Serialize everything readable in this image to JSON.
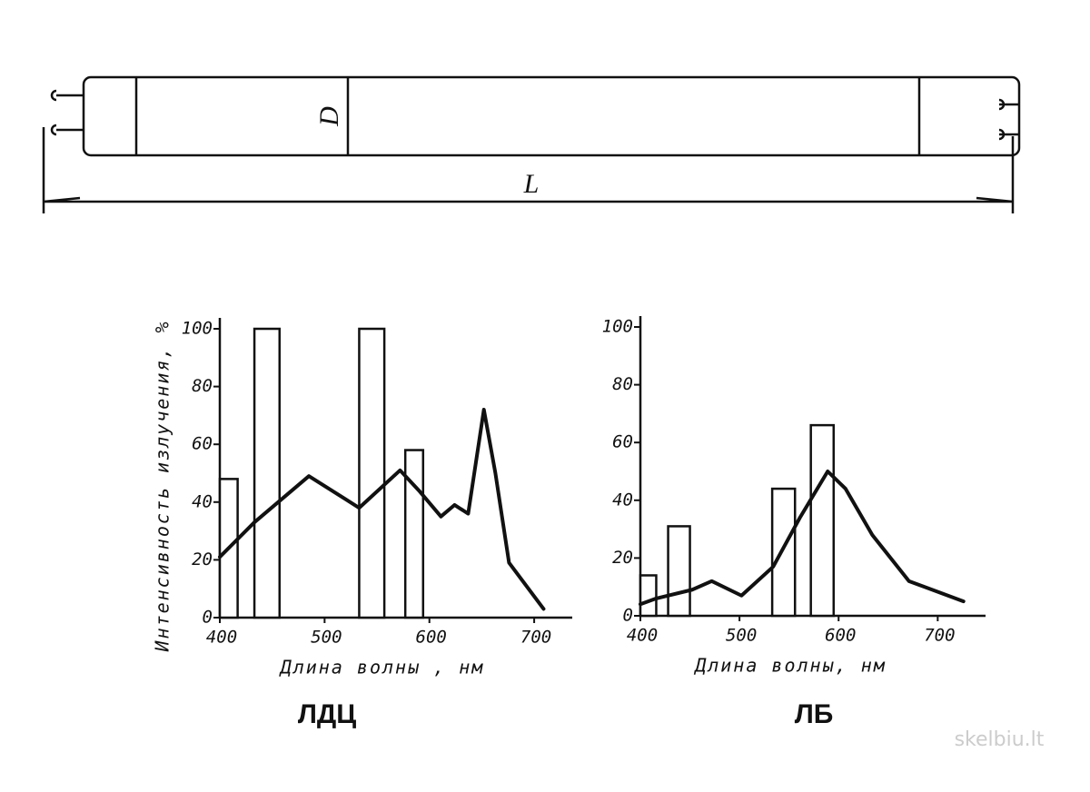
{
  "diagram": {
    "diameter_label": "D",
    "length_label": "L"
  },
  "chart_data": [
    {
      "type": "spectrum",
      "title": "ЛДЦ",
      "xlabel": "Длина волны , нм",
      "ylabel": "Интенсивность излучения, %",
      "xlim": [
        400,
        745
      ],
      "ylim": [
        0,
        100
      ],
      "xticks": [
        400,
        500,
        600,
        700
      ],
      "yticks": [
        0,
        20,
        40,
        60,
        80,
        100
      ],
      "bars": {
        "edges": [
          [
            400,
            417
          ],
          [
            433,
            457
          ],
          [
            533,
            557
          ],
          [
            577,
            594
          ]
        ],
        "values": [
          48,
          100,
          100,
          58
        ]
      },
      "curve": {
        "x": [
          400,
          433,
          485,
          533,
          572,
          590,
          611,
          624,
          637,
          652,
          663,
          676,
          709
        ],
        "y": [
          21,
          33,
          49,
          38,
          51,
          44,
          35,
          39,
          36,
          72,
          50,
          19,
          3
        ]
      },
      "color": "#111111"
    },
    {
      "type": "spectrum",
      "title": "ЛБ",
      "xlabel": "Длина волны, нм",
      "xlim": [
        400,
        740
      ],
      "ylim": [
        0,
        100
      ],
      "xticks": [
        400,
        500,
        600,
        700
      ],
      "yticks": [
        0,
        20,
        40,
        60,
        80,
        100
      ],
      "bars": {
        "edges": [
          [
            400,
            416
          ],
          [
            428,
            450
          ],
          [
            533,
            556
          ],
          [
            572,
            595
          ]
        ],
        "values": [
          14,
          31,
          44,
          66
        ]
      },
      "curve": {
        "x": [
          400,
          416,
          452,
          472,
          502,
          534,
          561,
          589,
          607,
          634,
          671,
          726
        ],
        "y": [
          4,
          6,
          9,
          12,
          7,
          17,
          34,
          50,
          44,
          28,
          12,
          5
        ]
      },
      "color": "#111111"
    }
  ],
  "watermark": "skelbiu.lt"
}
